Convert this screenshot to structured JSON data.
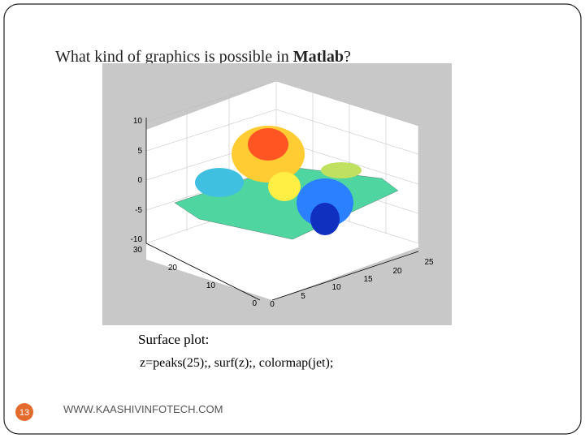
{
  "slide": {
    "title": {
      "text": "What kind of graphics is possible in ",
      "bold": "Matlab",
      "end": "?"
    },
    "figure": {
      "z_ticks": [
        10,
        5,
        0,
        -5,
        -10
      ],
      "y_ticks": [
        30,
        20,
        10,
        0
      ],
      "x_ticks": [
        0,
        5,
        10,
        15,
        20,
        25
      ]
    },
    "caption": [
      "Surface plot:",
      "z=peaks(25);, surf(z);, colormap(jet);"
    ],
    "footer": "WWW.KAASHIVINFOTECH.COM",
    "page_number": "13"
  }
}
